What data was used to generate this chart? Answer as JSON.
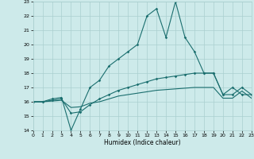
{
  "xlabel": "Humidex (Indice chaleur)",
  "background_color": "#cdeaea",
  "grid_color": "#aacfcf",
  "line_color": "#1a6e6e",
  "x_values": [
    0,
    1,
    2,
    3,
    4,
    5,
    6,
    7,
    8,
    9,
    10,
    11,
    12,
    13,
    14,
    15,
    16,
    17,
    18,
    19,
    20,
    21,
    22,
    23
  ],
  "main_line": [
    16,
    16,
    16.2,
    16.3,
    14,
    15.5,
    17,
    17.5,
    18.5,
    19,
    19.5,
    20,
    22,
    22.5,
    20.5,
    23,
    20.5,
    19.5,
    18,
    18,
    16.5,
    17,
    16.5,
    16.5
  ],
  "line2": [
    16,
    16,
    16.1,
    16.2,
    15.2,
    15.3,
    15.8,
    16.2,
    16.5,
    16.8,
    17,
    17.2,
    17.4,
    17.6,
    17.7,
    17.8,
    17.9,
    18,
    18,
    18,
    16.5,
    16.5,
    17,
    16.5
  ],
  "line3": [
    16,
    16,
    16.05,
    16.1,
    15.6,
    15.65,
    15.9,
    16.0,
    16.2,
    16.4,
    16.5,
    16.6,
    16.7,
    16.8,
    16.85,
    16.9,
    16.95,
    17.0,
    17.0,
    17.0,
    16.25,
    16.25,
    16.75,
    16.25
  ],
  "ylim": [
    14,
    23
  ],
  "xlim": [
    0,
    23
  ],
  "yticks": [
    14,
    15,
    16,
    17,
    18,
    19,
    20,
    21,
    22,
    23
  ],
  "xticks": [
    0,
    1,
    2,
    3,
    4,
    5,
    6,
    7,
    8,
    9,
    10,
    11,
    12,
    13,
    14,
    15,
    16,
    17,
    18,
    19,
    20,
    21,
    22,
    23
  ]
}
